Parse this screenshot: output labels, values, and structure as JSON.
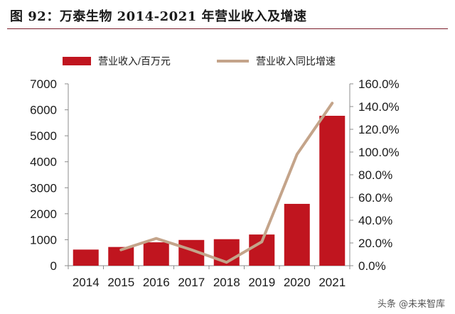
{
  "figure": {
    "title": "图 92：万泰生物 2014-2021 年营业收入及增速"
  },
  "watermark": "头条 @未来智库",
  "colors": {
    "bar": "#c0151f",
    "line": "#c4a48a",
    "title_rule": "#7a1d2a"
  },
  "chart_data": {
    "type": "bar+line",
    "categories": [
      "2014",
      "2015",
      "2016",
      "2017",
      "2018",
      "2019",
      "2020",
      "2021"
    ],
    "series": [
      {
        "name": "营业收入/百万元",
        "type": "bar",
        "axis": "left",
        "values": [
          620,
          720,
          900,
          990,
          1020,
          1200,
          2380,
          5770
        ]
      },
      {
        "name": "营业收入同比增速",
        "type": "line",
        "axis": "right",
        "values": [
          null,
          14.0,
          24.0,
          14.0,
          3.0,
          21.0,
          98.0,
          143.0
        ]
      }
    ],
    "y_left": {
      "min": 0,
      "max": 7000,
      "ticks": [
        "0",
        "1000",
        "2000",
        "3000",
        "4000",
        "5000",
        "6000",
        "7000"
      ]
    },
    "y_right": {
      "min": 0,
      "max": 160,
      "ticks": [
        "0.0%",
        "20.0%",
        "40.0%",
        "60.0%",
        "80.0%",
        "100.0%",
        "120.0%",
        "140.0%",
        "160.0%"
      ]
    },
    "legend_position": "top",
    "grid": false
  }
}
